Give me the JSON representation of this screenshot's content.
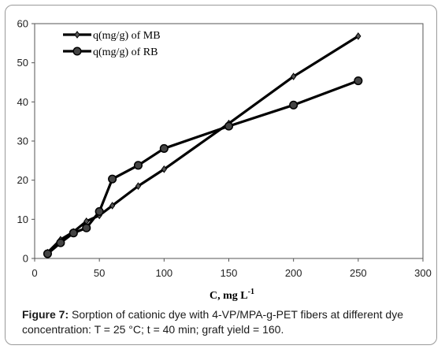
{
  "chart_data": {
    "type": "line",
    "title": "",
    "xlabel": "C, mg L",
    "xlabel_superscript": "-1",
    "ylabel": "",
    "xlim": [
      0,
      300
    ],
    "ylim": [
      0,
      60
    ],
    "x_ticks": [
      0,
      50,
      100,
      150,
      200,
      250,
      300
    ],
    "y_ticks": [
      0,
      10,
      20,
      30,
      40,
      50,
      60
    ],
    "grid": false,
    "legend_position": "top-left",
    "series": [
      {
        "name": "q(mg/g) of MB",
        "marker": "diamond",
        "color": "#000000",
        "x": [
          10,
          20,
          30,
          40,
          50,
          60,
          80,
          100,
          150,
          200,
          250
        ],
        "y": [
          1.5,
          4.8,
          6.8,
          9.5,
          11.0,
          13.5,
          18.5,
          22.8,
          34.5,
          46.5,
          56.8
        ]
      },
      {
        "name": "q(mg/g) of RB",
        "marker": "circle",
        "color": "#000000",
        "x": [
          10,
          20,
          30,
          40,
          50,
          60,
          80,
          100,
          150,
          200,
          250
        ],
        "y": [
          1.2,
          4.0,
          6.5,
          7.8,
          12.0,
          20.3,
          23.8,
          28.1,
          33.8,
          39.2,
          45.4
        ]
      }
    ]
  },
  "caption": {
    "label": "Figure 7:",
    "text": " Sorption of cationic dye with 4-VP/MPA-g-PET fibers at different dye concentration: T = 25 °C; t = 40 min; graft yield = 160."
  }
}
